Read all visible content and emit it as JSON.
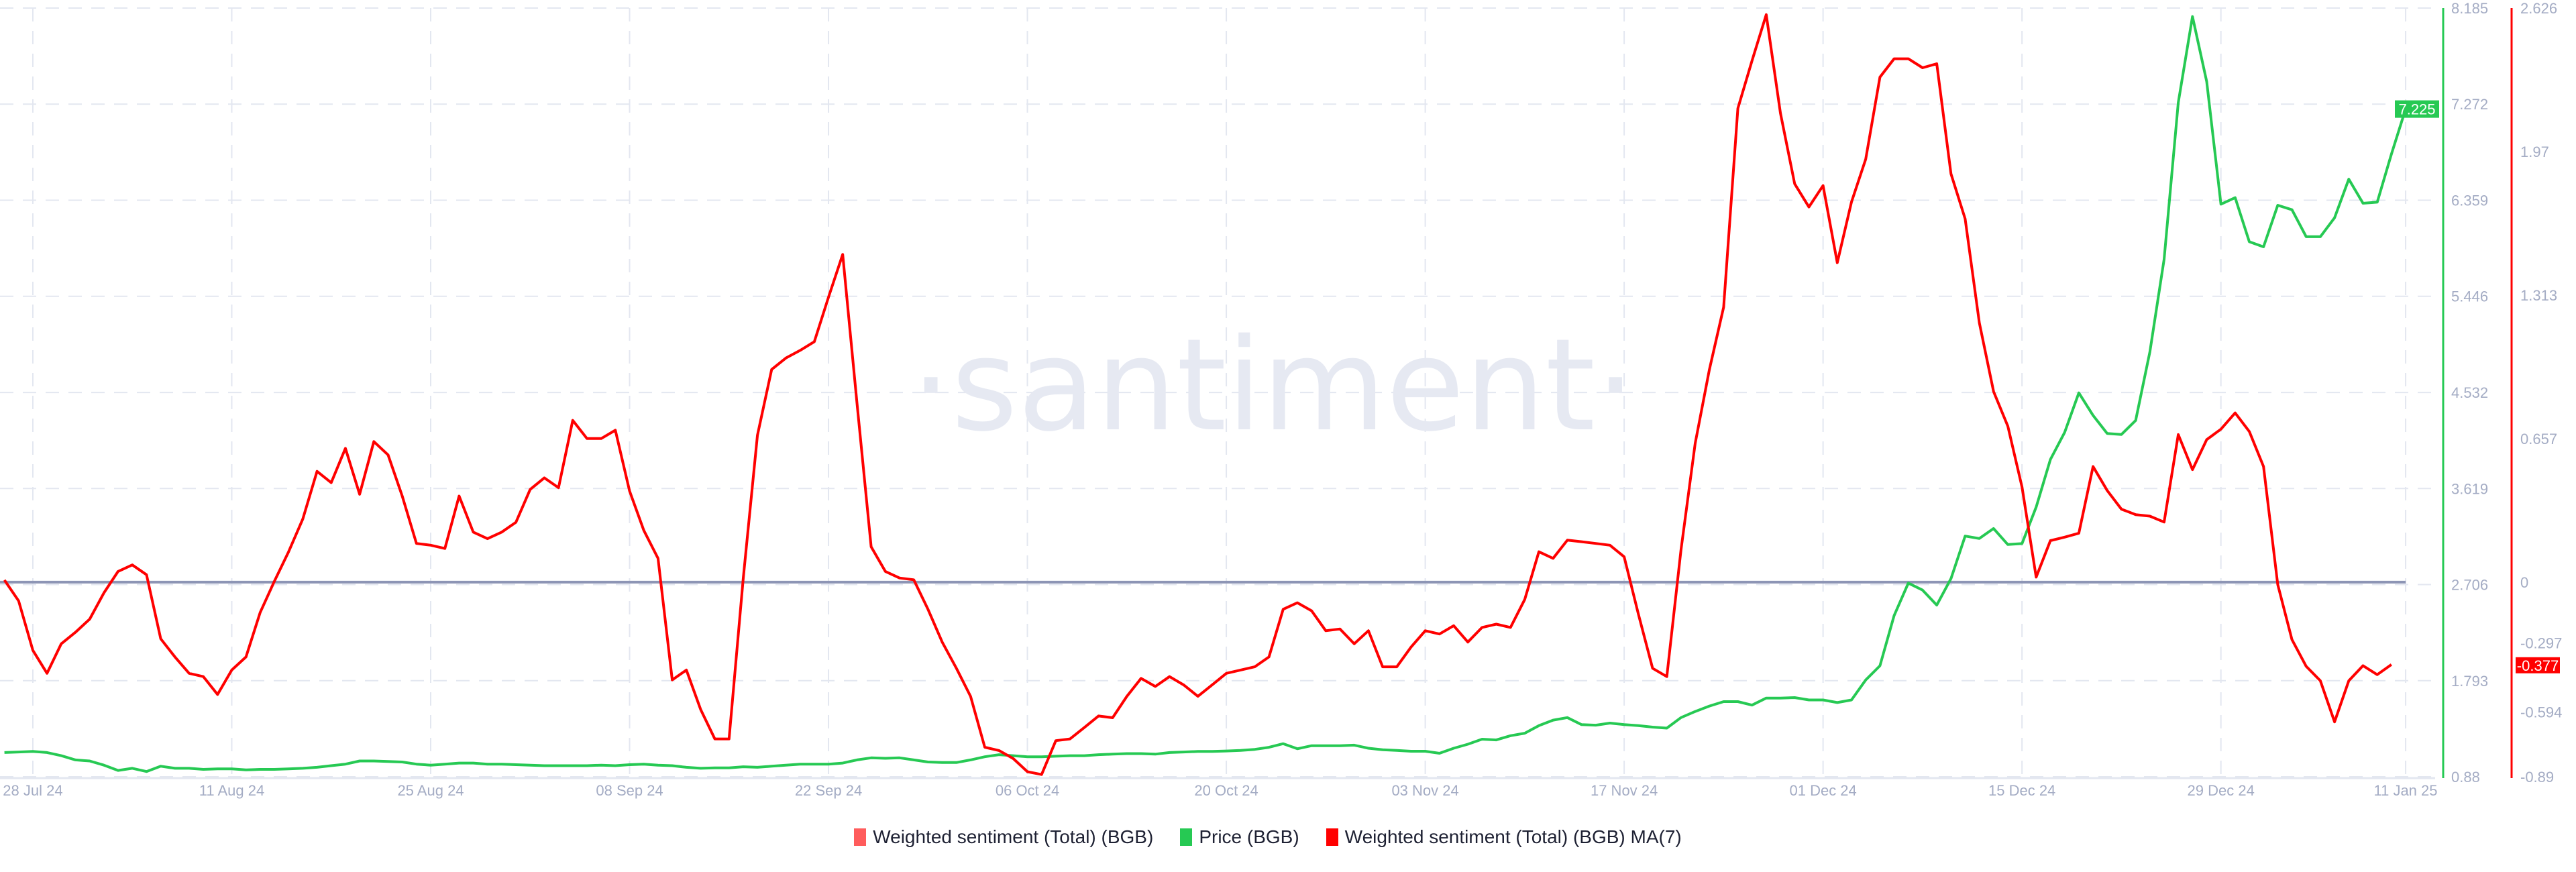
{
  "chart_data": {
    "type": "line",
    "watermark": "·santiment·",
    "colors": {
      "price": "#26c953",
      "sentiment_ma": "#ff0000",
      "sentiment_raw": "#ff5c5c",
      "zero_line": "#8d95b5",
      "grid": "#e3e7f0"
    },
    "grid": true,
    "legend_placement": "bottom",
    "legend": [
      {
        "name": "Weighted sentiment (Total) (BGB)",
        "color": "#ff5c5c"
      },
      {
        "name": "Price (BGB)",
        "color": "#26c953"
      },
      {
        "name": "Weighted sentiment (Total) (BGB) MA(7)",
        "color": "#ff0000"
      }
    ],
    "x_ticks": [
      {
        "date": "2024-07-28",
        "label": "28 Jul 24"
      },
      {
        "date": "2024-08-11",
        "label": "11 Aug 24"
      },
      {
        "date": "2024-08-25",
        "label": "25 Aug 24"
      },
      {
        "date": "2024-09-08",
        "label": "08 Sep 24"
      },
      {
        "date": "2024-09-22",
        "label": "22 Sep 24"
      },
      {
        "date": "2024-10-06",
        "label": "06 Oct 24"
      },
      {
        "date": "2024-10-20",
        "label": "20 Oct 24"
      },
      {
        "date": "2024-11-03",
        "label": "03 Nov 24"
      },
      {
        "date": "2024-11-17",
        "label": "17 Nov 24"
      },
      {
        "date": "2024-12-01",
        "label": "01 Dec 24"
      },
      {
        "date": "2024-12-15",
        "label": "15 Dec 24"
      },
      {
        "date": "2024-12-29",
        "label": "29 Dec 24"
      },
      {
        "date": "2025-01-11",
        "label": "11 Jan 25"
      }
    ],
    "price_axis": {
      "ylim": [
        0.88,
        8.185
      ],
      "ticks": [
        "8.185",
        "7.272",
        "6.359",
        "5.446",
        "4.532",
        "3.619",
        "2.706",
        "1.793",
        "0.88"
      ],
      "current": "7.225"
    },
    "sentiment_axis": {
      "ylim": [
        -0.89,
        2.626
      ],
      "ticks": [
        "2.626",
        "1.97",
        "1.313",
        "0.657",
        "0",
        "-0.297",
        "-0.594",
        "-0.89"
      ],
      "current": "-0.377"
    },
    "x": [
      "2024-07-26",
      "2024-07-27",
      "2024-07-28",
      "2024-07-29",
      "2024-07-30",
      "2024-07-31",
      "2024-08-01",
      "2024-08-02",
      "2024-08-03",
      "2024-08-04",
      "2024-08-05",
      "2024-08-06",
      "2024-08-07",
      "2024-08-08",
      "2024-08-09",
      "2024-08-10",
      "2024-08-11",
      "2024-08-12",
      "2024-08-13",
      "2024-08-14",
      "2024-08-15",
      "2024-08-16",
      "2024-08-17",
      "2024-08-18",
      "2024-08-19",
      "2024-08-20",
      "2024-08-21",
      "2024-08-22",
      "2024-08-23",
      "2024-08-24",
      "2024-08-25",
      "2024-08-26",
      "2024-08-27",
      "2024-08-28",
      "2024-08-29",
      "2024-08-30",
      "2024-08-31",
      "2024-09-01",
      "2024-09-02",
      "2024-09-03",
      "2024-09-04",
      "2024-09-05",
      "2024-09-06",
      "2024-09-07",
      "2024-09-08",
      "2024-09-09",
      "2024-09-10",
      "2024-09-11",
      "2024-09-12",
      "2024-09-13",
      "2024-09-14",
      "2024-09-15",
      "2024-09-16",
      "2024-09-17",
      "2024-09-18",
      "2024-09-19",
      "2024-09-20",
      "2024-09-21",
      "2024-09-22",
      "2024-09-23",
      "2024-09-24",
      "2024-09-25",
      "2024-09-26",
      "2024-09-27",
      "2024-09-28",
      "2024-09-29",
      "2024-09-30",
      "2024-10-01",
      "2024-10-02",
      "2024-10-03",
      "2024-10-04",
      "2024-10-05",
      "2024-10-06",
      "2024-10-07",
      "2024-10-08",
      "2024-10-09",
      "2024-10-10",
      "2024-10-11",
      "2024-10-12",
      "2024-10-13",
      "2024-10-14",
      "2024-10-15",
      "2024-10-16",
      "2024-10-17",
      "2024-10-18",
      "2024-10-19",
      "2024-10-20",
      "2024-10-21",
      "2024-10-22",
      "2024-10-23",
      "2024-10-24",
      "2024-10-25",
      "2024-10-26",
      "2024-10-27",
      "2024-10-28",
      "2024-10-29",
      "2024-10-30",
      "2024-10-31",
      "2024-11-01",
      "2024-11-02",
      "2024-11-03",
      "2024-11-04",
      "2024-11-05",
      "2024-11-06",
      "2024-11-07",
      "2024-11-08",
      "2024-11-09",
      "2024-11-10",
      "2024-11-11",
      "2024-11-12",
      "2024-11-13",
      "2024-11-14",
      "2024-11-15",
      "2024-11-16",
      "2024-11-17",
      "2024-11-18",
      "2024-11-19",
      "2024-11-20",
      "2024-11-21",
      "2024-11-22",
      "2024-11-23",
      "2024-11-24",
      "2024-11-25",
      "2024-11-26",
      "2024-11-27",
      "2024-11-28",
      "2024-11-29",
      "2024-11-30",
      "2024-12-01",
      "2024-12-02",
      "2024-12-03",
      "2024-12-04",
      "2024-12-05",
      "2024-12-06",
      "2024-12-07",
      "2024-12-08",
      "2024-12-09",
      "2024-12-10",
      "2024-12-11",
      "2024-12-12",
      "2024-12-13",
      "2024-12-14",
      "2024-12-15",
      "2024-12-16",
      "2024-12-17",
      "2024-12-18",
      "2024-12-19",
      "2024-12-20",
      "2024-12-21",
      "2024-12-22",
      "2024-12-23",
      "2024-12-24",
      "2024-12-25",
      "2024-12-26",
      "2024-12-27",
      "2024-12-28",
      "2024-12-29",
      "2024-12-30",
      "2024-12-31",
      "2025-01-01",
      "2025-01-02",
      "2025-01-03",
      "2025-01-04",
      "2025-01-05",
      "2025-01-06",
      "2025-01-07",
      "2025-01-08",
      "2025-01-09",
      "2025-01-10",
      "2025-01-11"
    ],
    "series": [
      {
        "name": "Price (BGB)",
        "axis": "price",
        "values": [
          1.11,
          1.115,
          1.12,
          1.11,
          1.08,
          1.04,
          1.03,
          0.99,
          0.94,
          0.96,
          0.93,
          0.98,
          0.96,
          0.96,
          0.95,
          0.955,
          0.955,
          0.945,
          0.95,
          0.95,
          0.955,
          0.96,
          0.97,
          0.985,
          1.0,
          1.03,
          1.03,
          1.025,
          1.02,
          1.0,
          0.99,
          1.0,
          1.01,
          1.01,
          1.0,
          1.0,
          0.995,
          0.99,
          0.985,
          0.985,
          0.985,
          0.985,
          0.99,
          0.985,
          0.995,
          1.0,
          0.99,
          0.985,
          0.97,
          0.96,
          0.965,
          0.965,
          0.975,
          0.97,
          0.98,
          0.99,
          1.0,
          1.0,
          1.0,
          1.01,
          1.04,
          1.06,
          1.055,
          1.06,
          1.04,
          1.02,
          1.015,
          1.015,
          1.04,
          1.07,
          1.09,
          1.08,
          1.07,
          1.07,
          1.075,
          1.08,
          1.08,
          1.09,
          1.095,
          1.1,
          1.1,
          1.095,
          1.11,
          1.115,
          1.12,
          1.12,
          1.125,
          1.13,
          1.14,
          1.16,
          1.194,
          1.146,
          1.175,
          1.175,
          1.175,
          1.18,
          1.151,
          1.137,
          1.13,
          1.122,
          1.122,
          1.103,
          1.151,
          1.189,
          1.237,
          1.23,
          1.27,
          1.294,
          1.366,
          1.418,
          1.442,
          1.375,
          1.37,
          1.39,
          1.375,
          1.366,
          1.352,
          1.342,
          1.442,
          1.5,
          1.552,
          1.594,
          1.594,
          1.561,
          1.628,
          1.628,
          1.632,
          1.61,
          1.61,
          1.585,
          1.61,
          1.8,
          1.935,
          2.411,
          2.72,
          2.654,
          2.511,
          2.763,
          3.167,
          3.144,
          3.239,
          3.087,
          3.096,
          3.443,
          3.895,
          4.152,
          4.528,
          4.314,
          4.142,
          4.133,
          4.266,
          4.918,
          5.797,
          7.286,
          8.104,
          7.486,
          6.321,
          6.383,
          5.964,
          5.916,
          6.311,
          6.268,
          6.012,
          6.012,
          6.192,
          6.559,
          6.33,
          6.34,
          6.796,
          7.225
        ]
      },
      {
        "name": "Weighted sentiment (Total) (BGB) MA(7)",
        "axis": "sentiment",
        "values": [
          0.01,
          -0.086,
          -0.312,
          -0.417,
          -0.282,
          -0.229,
          -0.169,
          -0.049,
          0.049,
          0.079,
          0.034,
          -0.259,
          -0.342,
          -0.417,
          -0.432,
          -0.514,
          -0.402,
          -0.342,
          -0.139,
          0.004,
          0.139,
          0.289,
          0.507,
          0.455,
          0.612,
          0.402,
          0.643,
          0.582,
          0.394,
          0.177,
          0.169,
          0.154,
          0.394,
          0.229,
          0.199,
          0.229,
          0.274,
          0.424,
          0.477,
          0.432,
          0.74,
          0.657,
          0.657,
          0.695,
          0.417,
          0.237,
          0.109,
          -0.447,
          -0.402,
          -0.582,
          -0.717,
          -0.717,
          0.019,
          0.672,
          0.973,
          1.025,
          1.06,
          1.1,
          1.303,
          1.499,
          0.822,
          0.162,
          0.049,
          0.019,
          0.011,
          -0.124,
          -0.274,
          -0.394,
          -0.522,
          -0.755,
          -0.77,
          -0.807,
          -0.867,
          -0.88,
          -0.725,
          -0.717,
          -0.665,
          -0.612,
          -0.62,
          -0.522,
          -0.44,
          -0.477,
          -0.432,
          -0.47,
          -0.522,
          -0.47,
          -0.417,
          -0.402,
          -0.387,
          -0.342,
          -0.124,
          -0.094,
          -0.131,
          -0.222,
          -0.214,
          -0.282,
          -0.222,
          -0.387,
          -0.387,
          -0.297,
          -0.222,
          -0.237,
          -0.199,
          -0.274,
          -0.207,
          -0.192,
          -0.207,
          -0.079,
          0.139,
          0.109,
          0.192,
          0.185,
          0.177,
          0.169,
          0.116,
          -0.146,
          -0.394,
          -0.432,
          0.147,
          0.635,
          0.973,
          1.258,
          2.167,
          2.385,
          2.596,
          2.145,
          1.822,
          1.716,
          1.814,
          1.461,
          1.739,
          1.935,
          2.31,
          2.394,
          2.394,
          2.353,
          2.371,
          1.868,
          1.662,
          1.186,
          0.872,
          0.714,
          0.435,
          0.023,
          0.19,
          0.206,
          0.224,
          0.529,
          0.419,
          0.334,
          0.309,
          0.302,
          0.275,
          0.675,
          0.515,
          0.652,
          0.7,
          0.774,
          0.689,
          0.529,
          -0.011,
          -0.263,
          -0.385,
          -0.451,
          -0.639,
          -0.451,
          -0.382,
          -0.423,
          -0.377,
          null
        ]
      }
    ]
  }
}
